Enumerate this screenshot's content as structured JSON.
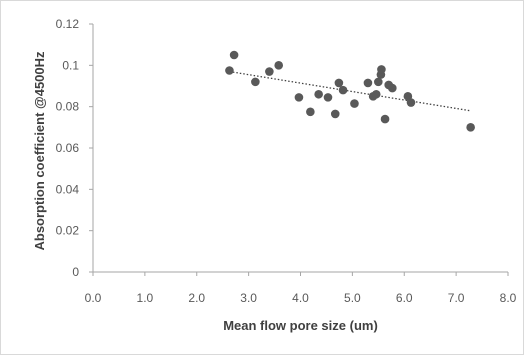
{
  "colors": {
    "points": "#595959",
    "axis": "#a6a6a6",
    "trendline": "#404040",
    "text": "#595959"
  },
  "chart_data": {
    "type": "scatter",
    "title": "",
    "xlabel": "Mean flow pore size (um)",
    "ylabel": "Absorption coefficient @4500Hz",
    "xlim": [
      0,
      8
    ],
    "ylim": [
      0,
      0.12
    ],
    "x_ticks": [
      "0.0",
      "1.0",
      "2.0",
      "3.0",
      "4.0",
      "5.0",
      "6.0",
      "7.0",
      "8.0"
    ],
    "y_ticks": [
      "0",
      "0.02",
      "0.04",
      "0.06",
      "0.08",
      "0.1",
      "0.12"
    ],
    "grid": false,
    "legend": "none",
    "series": [
      {
        "points": [
          [
            2.63,
            0.0975
          ],
          [
            2.72,
            0.105
          ],
          [
            3.13,
            0.092
          ],
          [
            3.4,
            0.097
          ],
          [
            3.58,
            0.1
          ],
          [
            3.97,
            0.0845
          ],
          [
            4.19,
            0.0775
          ],
          [
            4.35,
            0.086
          ],
          [
            4.53,
            0.0845
          ],
          [
            4.67,
            0.0765
          ],
          [
            4.74,
            0.0915
          ],
          [
            4.82,
            0.088
          ],
          [
            5.04,
            0.0815
          ],
          [
            5.3,
            0.0915
          ],
          [
            5.4,
            0.085
          ],
          [
            5.46,
            0.086
          ],
          [
            5.5,
            0.092
          ],
          [
            5.55,
            0.0955
          ],
          [
            5.56,
            0.098
          ],
          [
            5.63,
            0.074
          ],
          [
            5.7,
            0.0905
          ],
          [
            5.77,
            0.089
          ],
          [
            6.07,
            0.085
          ],
          [
            6.13,
            0.082
          ],
          [
            7.28,
            0.07
          ]
        ]
      }
    ],
    "trendline": {
      "type": "linear",
      "style": "dotted",
      "points": [
        [
          2.63,
          0.097
        ],
        [
          7.28,
          0.078
        ]
      ]
    }
  }
}
